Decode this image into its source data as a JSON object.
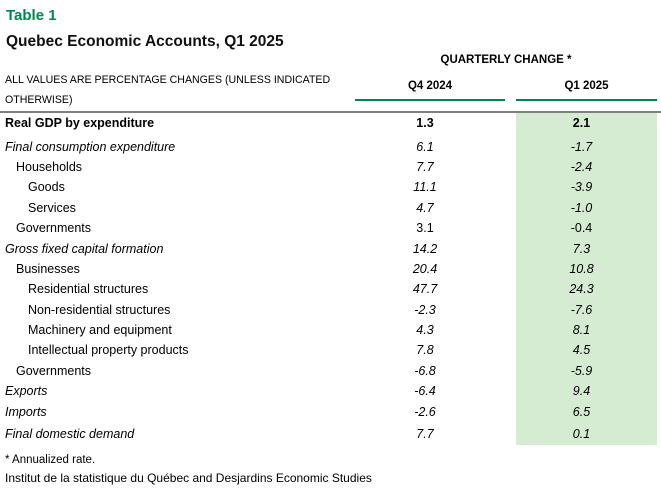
{
  "page": {
    "table_label": "Table 1",
    "title": "Quebec Economic Accounts, Q1 2025"
  },
  "header": {
    "note": "ALL VALUES ARE PERCENTAGE CHANGES (UNLESS INDICATED OTHERWISE)",
    "group_header": "QUARTERLY CHANGE *"
  },
  "table": {
    "columns": [
      "Q4 2024",
      "Q1 2025"
    ],
    "rows": [
      {
        "label": "Real GDP by expenditure",
        "q4": "1.3",
        "q1": "2.1",
        "indent": 0,
        "bold": true,
        "italic_label": false,
        "italic_values": false,
        "spacing_after": true
      },
      {
        "label": "Final consumption expenditure",
        "q4": "6.1",
        "q1": "-1.7",
        "indent": 0,
        "bold": false,
        "italic_label": true,
        "italic_values": true
      },
      {
        "label": "Households",
        "q4": "7.7",
        "q1": "-2.4",
        "indent": 1,
        "bold": false,
        "italic_label": false,
        "italic_values": true
      },
      {
        "label": "Goods",
        "q4": "11.1",
        "q1": "-3.9",
        "indent": 2,
        "bold": false,
        "italic_label": false,
        "italic_values": true
      },
      {
        "label": "Services",
        "q4": "4.7",
        "q1": "-1.0",
        "indent": 2,
        "bold": false,
        "italic_label": false,
        "italic_values": true
      },
      {
        "label": "Governments",
        "q4": "3.1",
        "q1": "-0.4",
        "indent": 1,
        "bold": false,
        "italic_label": false,
        "italic_values": false
      },
      {
        "label": "Gross fixed capital formation",
        "q4": "14.2",
        "q1": "7.3",
        "indent": 0,
        "bold": false,
        "italic_label": true,
        "italic_values": true
      },
      {
        "label": "Businesses",
        "q4": "20.4",
        "q1": "10.8",
        "indent": 1,
        "bold": false,
        "italic_label": false,
        "italic_values": true
      },
      {
        "label": "Residential structures",
        "q4": "47.7",
        "q1": "24.3",
        "indent": 2,
        "bold": false,
        "italic_label": false,
        "italic_values": true
      },
      {
        "label": "Non-residential structures",
        "q4": "-2.3",
        "q1": "-7.6",
        "indent": 2,
        "bold": false,
        "italic_label": false,
        "italic_values": true
      },
      {
        "label": "Machinery and equipment",
        "q4": "4.3",
        "q1": "8.1",
        "indent": 2,
        "bold": false,
        "italic_label": false,
        "italic_values": true
      },
      {
        "label": "Intellectual property products",
        "q4": "7.8",
        "q1": "4.5",
        "indent": 2,
        "bold": false,
        "italic_label": false,
        "italic_values": true
      },
      {
        "label": "Governments",
        "q4": "-6.8",
        "q1": "-5.9",
        "indent": 1,
        "bold": false,
        "italic_label": false,
        "italic_values": true
      },
      {
        "label": "Exports",
        "q4": "-6.4",
        "q1": "9.4",
        "indent": 0,
        "bold": false,
        "italic_label": true,
        "italic_values": true
      },
      {
        "label": "Imports",
        "q4": "-2.6",
        "q1": "6.5",
        "indent": 0,
        "bold": false,
        "italic_label": true,
        "italic_values": true
      },
      {
        "label": "Final domestic demand",
        "q4": "7.7",
        "q1": "0.1",
        "indent": 0,
        "bold": false,
        "italic_label": true,
        "italic_values": true,
        "spacing_before": true
      }
    ]
  },
  "footnotes": {
    "annualized": "* Annualized rate.",
    "source": "Institut de la statistique du Québec and Desjardins Economic Studies"
  },
  "colors": {
    "accent_green": "#00874e",
    "highlight_green": "#d5ecd3",
    "divider_gray": "#7f7f7f"
  }
}
